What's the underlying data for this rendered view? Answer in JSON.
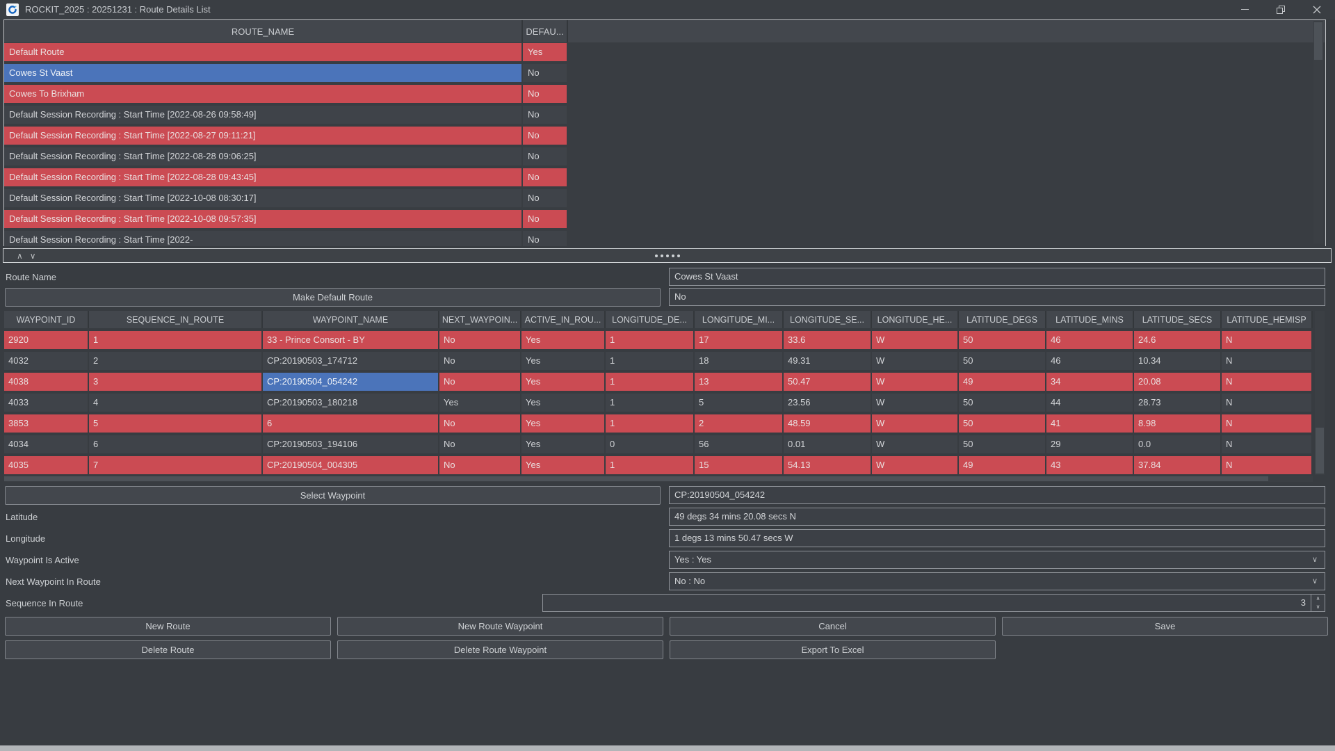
{
  "window": {
    "title": "ROCKIT_2025 : 20251231 : Route Details List"
  },
  "icons": {
    "chevron_up": "∧",
    "chevron_down": "∨"
  },
  "colors": {
    "selection_blue": "#4b74ba",
    "highlight_red": "#cb4b53"
  },
  "routes_table": {
    "columns": [
      "ROUTE_NAME",
      "DEFAU..."
    ],
    "selected_index": 1,
    "rows": [
      {
        "route_name": "Default Route",
        "default": "Yes"
      },
      {
        "route_name": "Cowes St Vaast",
        "default": "No"
      },
      {
        "route_name": "Cowes To Brixham",
        "default": "No"
      },
      {
        "route_name": "Default Session Recording : Start Time [2022-08-26 09:58:49]",
        "default": "No"
      },
      {
        "route_name": "Default Session Recording : Start Time [2022-08-27 09:11:21]",
        "default": "No"
      },
      {
        "route_name": "Default Session Recording : Start Time [2022-08-28 09:06:25]",
        "default": "No"
      },
      {
        "route_name": "Default Session Recording : Start Time [2022-08-28 09:43:45]",
        "default": "No"
      },
      {
        "route_name": "Default Session Recording : Start Time [2022-10-08 08:30:17]",
        "default": "No"
      },
      {
        "route_name": "Default Session Recording : Start Time [2022-10-08 09:57:35]",
        "default": "No"
      },
      {
        "route_name": "Default Session Recording : Start Time [2022-",
        "default": "No"
      }
    ]
  },
  "route_form": {
    "route_name_label": "Route Name",
    "route_name_value": "Cowes St Vaast",
    "make_default_button": "Make Default Route",
    "default_value": "No"
  },
  "waypoints_table": {
    "columns": [
      "WAYPOINT_ID",
      "SEQUENCE_IN_ROUTE",
      "WAYPOINT_NAME",
      "NEXT_WAYPOIN...",
      "ACTIVE_IN_ROU...",
      "LONGITUDE_DE...",
      "LONGITUDE_MI...",
      "LONGITUDE_SE...",
      "LONGITUDE_HE...",
      "LATITUDE_DEGS",
      "LATITUDE_MINS",
      "LATITUDE_SECS",
      "LATITUDE_HEMISP"
    ],
    "selected_cell": {
      "row": 2,
      "col": 2
    },
    "rows": [
      [
        "2920",
        "1",
        "33 - Prince Consort - BY",
        "No",
        "Yes",
        "1",
        "17",
        "33.6",
        "W",
        "50",
        "46",
        "24.6",
        "N"
      ],
      [
        "4032",
        "2",
        "CP:20190503_174712",
        "No",
        "Yes",
        "1",
        "18",
        "49.31",
        "W",
        "50",
        "46",
        "10.34",
        "N"
      ],
      [
        "4038",
        "3",
        "CP:20190504_054242",
        "No",
        "Yes",
        "1",
        "13",
        "50.47",
        "W",
        "49",
        "34",
        "20.08",
        "N"
      ],
      [
        "4033",
        "4",
        "CP:20190503_180218",
        "Yes",
        "Yes",
        "1",
        "5",
        "23.56",
        "W",
        "50",
        "44",
        "28.73",
        "N"
      ],
      [
        "3853",
        "5",
        "6",
        "No",
        "Yes",
        "1",
        "2",
        "48.59",
        "W",
        "50",
        "41",
        "8.98",
        "N"
      ],
      [
        "4034",
        "6",
        "CP:20190503_194106",
        "No",
        "Yes",
        "0",
        "56",
        "0.01",
        "W",
        "50",
        "29",
        "0.0",
        "N"
      ],
      [
        "4035",
        "7",
        "CP:20190504_004305",
        "No",
        "Yes",
        "1",
        "15",
        "54.13",
        "W",
        "49",
        "43",
        "37.84",
        "N"
      ]
    ]
  },
  "waypoint_form": {
    "select_waypoint_button": "Select Waypoint",
    "selected_waypoint_value": "CP:20190504_054242",
    "latitude_label": "Latitude",
    "latitude_value": "49 degs 34 mins 20.08 secs N",
    "longitude_label": "Longitude",
    "longitude_value": "1 degs 13 mins 50.47 secs W",
    "active_label": "Waypoint Is Active",
    "active_value": "Yes : Yes",
    "next_waypoint_label": "Next Waypoint In Route",
    "next_waypoint_value": "No : No",
    "sequence_label": "Sequence In Route",
    "sequence_value": "3"
  },
  "actions": {
    "new_route": "New Route",
    "new_route_waypoint": "New Route Waypoint",
    "cancel": "Cancel",
    "save": "Save",
    "delete_route": "Delete Route",
    "delete_route_waypoint": "Delete Route Waypoint",
    "export_to_excel": "Export To Excel"
  }
}
